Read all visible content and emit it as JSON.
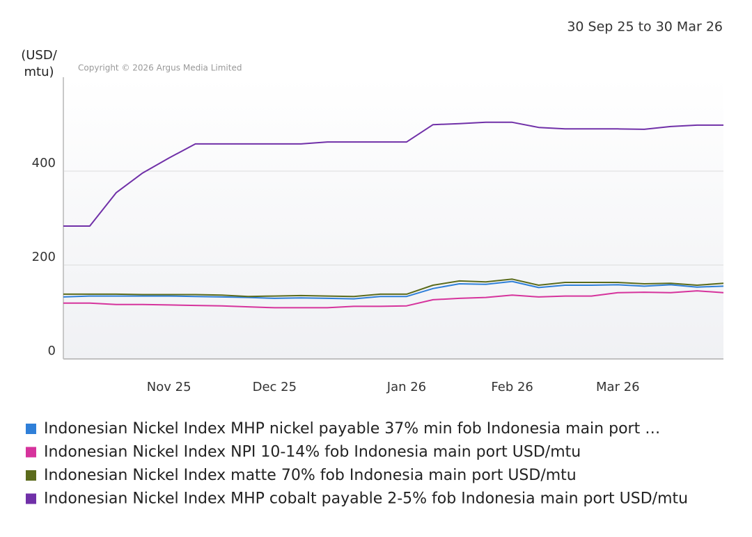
{
  "chart_data": {
    "type": "line",
    "date_range": "30 Sep 25 to 30 Mar 26",
    "y_label": "(USD/ mtu)",
    "copyright": "Copyright © 2026 Argus Media Limited",
    "categories": [
      null,
      null,
      null,
      null,
      "Nov 25",
      null,
      null,
      null,
      "Dec 25",
      null,
      null,
      null,
      null,
      "Jan 26",
      null,
      null,
      null,
      "Feb 26",
      null,
      null,
      null,
      "Mar 26",
      null,
      null,
      null,
      null
    ],
    "ylim": [
      0,
      600
    ],
    "yticks": [
      0,
      200,
      400
    ],
    "grid": true,
    "series": [
      {
        "name": "Indonesian Nickel Index MHP nickel payable 37% min fob Indonesia main port …",
        "color": "#2f7fd8",
        "values": [
          132,
          134,
          134,
          134,
          134,
          133,
          132,
          131,
          129,
          130,
          129,
          128,
          133,
          133,
          150,
          160,
          159,
          165,
          152,
          157,
          157,
          158,
          155,
          158,
          153,
          155
        ]
      },
      {
        "name": "Indonesian Nickel Index NPI 10-14% fob Indonesia main port USD/mtu",
        "color": "#d6339c",
        "values": [
          119,
          119,
          116,
          116,
          115,
          114,
          113,
          111,
          109,
          109,
          109,
          112,
          112,
          113,
          126,
          129,
          131,
          136,
          132,
          134,
          134,
          141,
          142,
          141,
          145,
          141
        ]
      },
      {
        "name": "Indonesian Nickel Index matte 70% fob Indonesia main port USD/mtu",
        "color": "#5b6b1c",
        "values": [
          138,
          138,
          138,
          137,
          137,
          137,
          136,
          133,
          134,
          135,
          134,
          133,
          138,
          138,
          157,
          166,
          164,
          170,
          157,
          163,
          163,
          163,
          160,
          161,
          157,
          161
        ]
      },
      {
        "name": "Indonesian Nickel Index MHP cobalt payable 2-5% fob Indonesia main port USD/mtu",
        "color": "#7030a8",
        "values": [
          283,
          283,
          354,
          396,
          428,
          458,
          458,
          458,
          458,
          458,
          462,
          462,
          462,
          462,
          499,
          501,
          504,
          504,
          493,
          490,
          490,
          490,
          489,
          495,
          498,
          498
        ]
      }
    ]
  }
}
